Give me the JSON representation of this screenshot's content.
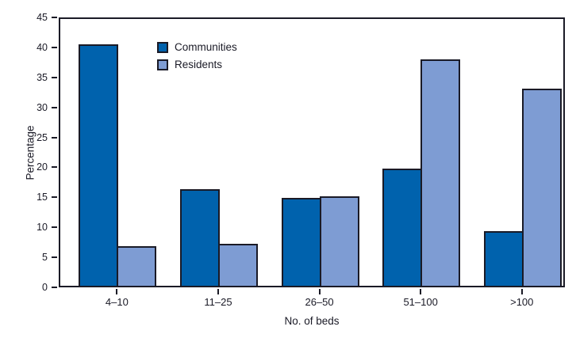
{
  "chart_data": {
    "type": "bar",
    "title": "",
    "xlabel": "No. of beds",
    "ylabel": "Percentage",
    "categories": [
      "4–10",
      "11–25",
      "26–50",
      "51–100",
      ">100"
    ],
    "series": [
      {
        "name": "Communities",
        "color": "#0062AD",
        "values": [
          40.5,
          16.2,
          14.7,
          19.6,
          9.2
        ]
      },
      {
        "name": "Residents",
        "color": "#7E9CD3",
        "values": [
          6.6,
          7.0,
          15.0,
          38.0,
          33.1
        ]
      }
    ],
    "ylim": [
      0,
      45
    ],
    "yticks": [
      0,
      5,
      10,
      15,
      20,
      25,
      30,
      35,
      40,
      45
    ],
    "grid": false,
    "legend_position": "upper-left-inside",
    "bar_border_color": "#1A1A26",
    "axis_color": "#1A1A26",
    "background_color": "#FFFFFF"
  }
}
